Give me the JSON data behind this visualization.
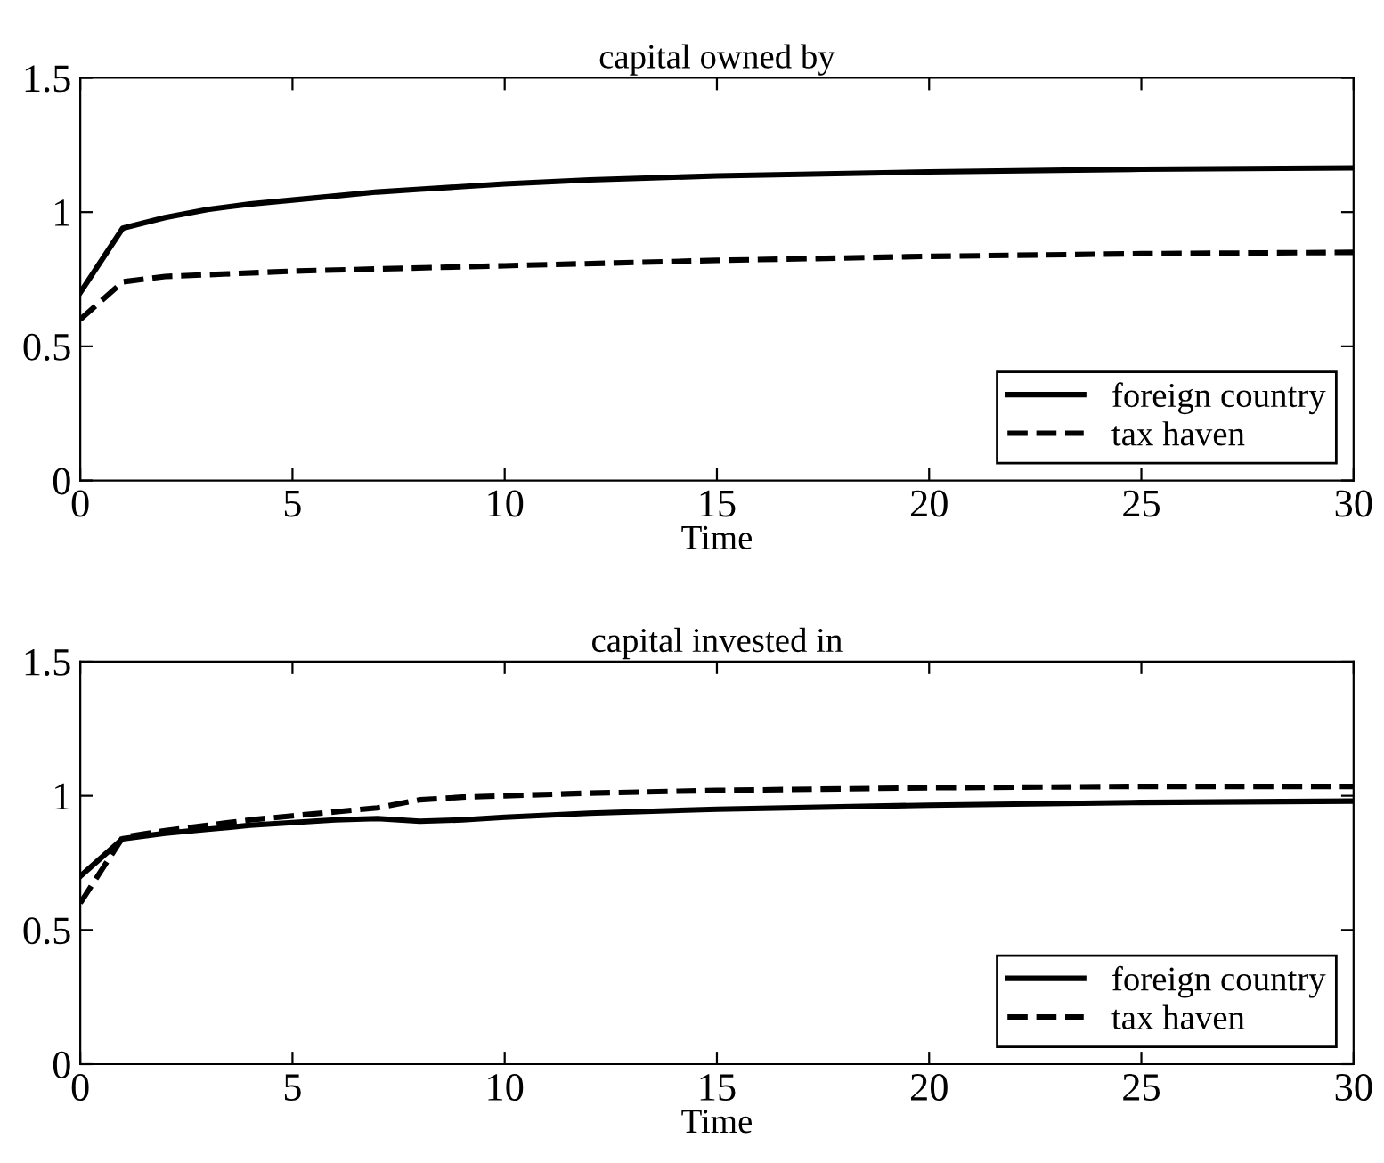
{
  "chart_data": [
    {
      "type": "line",
      "title": "capital owned by",
      "xlabel": "Time",
      "xlim": [
        0,
        30
      ],
      "xticks": [
        0,
        5,
        10,
        15,
        20,
        25,
        30
      ],
      "ylim": [
        0,
        1.5
      ],
      "yticks": [
        0,
        0.5,
        1,
        1.5
      ],
      "legend": "lower right",
      "grid": false,
      "series": [
        {
          "name": "foreign country",
          "color": "#000000",
          "line_style": "solid",
          "x": [
            0,
            1,
            2,
            3,
            4,
            5,
            6,
            7,
            8,
            10,
            12,
            15,
            20,
            25,
            30
          ],
          "values": [
            0.7,
            0.94,
            0.98,
            1.01,
            1.03,
            1.045,
            1.06,
            1.075,
            1.085,
            1.105,
            1.12,
            1.135,
            1.15,
            1.16,
            1.165
          ]
        },
        {
          "name": "tax haven",
          "color": "#000000",
          "line_style": "dashed",
          "x": [
            0,
            1,
            2,
            5,
            10,
            15,
            20,
            25,
            30
          ],
          "values": [
            0.6,
            0.74,
            0.76,
            0.78,
            0.8,
            0.82,
            0.835,
            0.845,
            0.85
          ]
        }
      ]
    },
    {
      "type": "line",
      "title": "capital invested in",
      "xlabel": "Time",
      "xlim": [
        0,
        30
      ],
      "xticks": [
        0,
        5,
        10,
        15,
        20,
        25,
        30
      ],
      "ylim": [
        0,
        1.5
      ],
      "yticks": [
        0,
        0.5,
        1,
        1.5
      ],
      "legend": "lower right",
      "grid": false,
      "series": [
        {
          "name": "foreign country",
          "color": "#000000",
          "line_style": "solid",
          "x": [
            0,
            1,
            2,
            3,
            4,
            5,
            6,
            7,
            8,
            9,
            10,
            12,
            15,
            20,
            25,
            30
          ],
          "values": [
            0.7,
            0.84,
            0.86,
            0.875,
            0.89,
            0.9,
            0.91,
            0.915,
            0.905,
            0.91,
            0.92,
            0.935,
            0.95,
            0.965,
            0.975,
            0.98
          ]
        },
        {
          "name": "tax haven",
          "color": "#000000",
          "line_style": "dashed",
          "x": [
            0,
            1,
            2,
            3,
            4,
            5,
            6,
            7,
            8,
            9,
            10,
            12,
            15,
            20,
            25,
            30
          ],
          "values": [
            0.6,
            0.845,
            0.87,
            0.89,
            0.91,
            0.925,
            0.94,
            0.955,
            0.985,
            0.995,
            1.0,
            1.01,
            1.02,
            1.03,
            1.035,
            1.035
          ]
        }
      ]
    }
  ]
}
